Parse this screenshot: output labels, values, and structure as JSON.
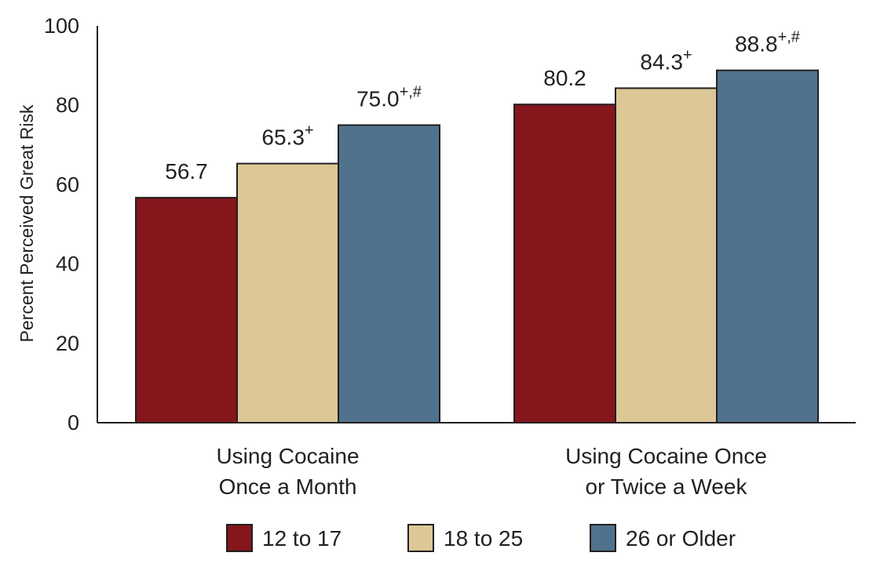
{
  "chart_data": {
    "type": "bar",
    "ylabel": "Percent Perceived Great Risk",
    "ylim": [
      0,
      100
    ],
    "yticks": [
      "0",
      "20",
      "40",
      "60",
      "80",
      "100"
    ],
    "categories": [
      [
        "Using Cocaine",
        "Once a Month"
      ],
      [
        "Using Cocaine Once",
        "or Twice a Week"
      ]
    ],
    "series": [
      {
        "name": "12 to 17",
        "color": "#84161c",
        "values": [
          56.7,
          80.2
        ],
        "labels": [
          "56.7",
          "80.2"
        ],
        "marks": [
          "",
          ""
        ]
      },
      {
        "name": "18 to 25",
        "color": "#dcc896",
        "values": [
          65.3,
          84.3
        ],
        "labels": [
          "65.3",
          "84.3"
        ],
        "marks": [
          "+",
          "+"
        ]
      },
      {
        "name": "26 or Older",
        "color": "#51728c",
        "values": [
          75.0,
          88.8
        ],
        "labels": [
          "75.0",
          "88.8"
        ],
        "marks": [
          "+,#",
          "+,#"
        ]
      }
    ],
    "grid": false,
    "legend_position": "bottom"
  }
}
